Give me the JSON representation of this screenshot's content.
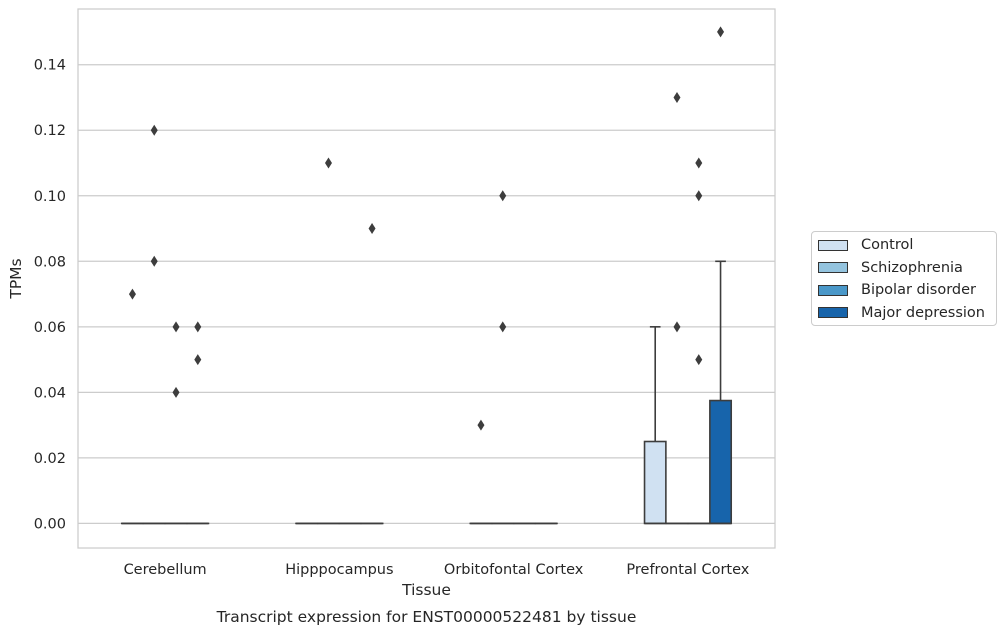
{
  "chart_data": {
    "type": "box",
    "caption": "Transcript expression for ENST00000522481 by tissue",
    "xlabel": "Tissue",
    "ylabel": "TPMs",
    "ylim": [
      -0.0075,
      0.157
    ],
    "yticks": [
      0.0,
      0.02,
      0.04,
      0.06,
      0.08,
      0.1,
      0.12,
      0.14
    ],
    "ytick_labels": [
      "0.00",
      "0.02",
      "0.04",
      "0.06",
      "0.08",
      "0.10",
      "0.12",
      "0.14"
    ],
    "grid": true,
    "legend_position": "right",
    "categories": [
      "Cerebellum",
      "Hipppocampus",
      "Orbitofontal Cortex",
      "Prefrontal Cortex"
    ],
    "series": [
      {
        "name": "Control",
        "color": "#d0e1f2",
        "boxes": [
          {
            "q1": 0,
            "median": 0,
            "q3": 0,
            "whisker_low": 0,
            "whisker_high": 0,
            "outliers": [
              0.07
            ]
          },
          {
            "q1": 0,
            "median": 0,
            "q3": 0,
            "whisker_low": 0,
            "whisker_high": 0,
            "outliers": []
          },
          {
            "q1": 0,
            "median": 0,
            "q3": 0,
            "whisker_low": 0,
            "whisker_high": 0,
            "outliers": [
              0.03
            ]
          },
          {
            "q1": 0,
            "median": 0,
            "q3": 0.025,
            "whisker_low": 0,
            "whisker_high": 0.06,
            "outliers": []
          }
        ]
      },
      {
        "name": "Schizophrenia",
        "color": "#94c4df",
        "boxes": [
          {
            "q1": 0,
            "median": 0,
            "q3": 0,
            "whisker_low": 0,
            "whisker_high": 0,
            "outliers": [
              0.12,
              0.08
            ]
          },
          {
            "q1": 0,
            "median": 0,
            "q3": 0,
            "whisker_low": 0,
            "whisker_high": 0,
            "outliers": [
              0.11
            ]
          },
          {
            "q1": 0,
            "median": 0,
            "q3": 0,
            "whisker_low": 0,
            "whisker_high": 0,
            "outliers": [
              0.1,
              0.06
            ]
          },
          {
            "q1": 0,
            "median": 0,
            "q3": 0,
            "whisker_low": 0,
            "whisker_high": 0,
            "outliers": [
              0.13,
              0.06
            ]
          }
        ]
      },
      {
        "name": "Bipolar disorder",
        "color": "#4a98c9",
        "boxes": [
          {
            "q1": 0,
            "median": 0,
            "q3": 0,
            "whisker_low": 0,
            "whisker_high": 0,
            "outliers": [
              0.06,
              0.04
            ]
          },
          {
            "q1": 0,
            "median": 0,
            "q3": 0,
            "whisker_low": 0,
            "whisker_high": 0,
            "outliers": []
          },
          {
            "q1": 0,
            "median": 0,
            "q3": 0,
            "whisker_low": 0,
            "whisker_high": 0,
            "outliers": []
          },
          {
            "q1": 0,
            "median": 0,
            "q3": 0,
            "whisker_low": 0,
            "whisker_high": 0,
            "outliers": [
              0.11,
              0.1,
              0.05
            ]
          }
        ]
      },
      {
        "name": "Major depression",
        "color": "#1764ab",
        "boxes": [
          {
            "q1": 0,
            "median": 0,
            "q3": 0,
            "whisker_low": 0,
            "whisker_high": 0,
            "outliers": [
              0.06,
              0.05
            ]
          },
          {
            "q1": 0,
            "median": 0,
            "q3": 0,
            "whisker_low": 0,
            "whisker_high": 0,
            "outliers": [
              0.09
            ]
          },
          {
            "q1": 0,
            "median": 0,
            "q3": 0,
            "whisker_low": 0,
            "whisker_high": 0,
            "outliers": []
          },
          {
            "q1": 0,
            "median": 0,
            "q3": 0.0375,
            "whisker_low": 0,
            "whisker_high": 0.08,
            "outliers": [
              0.15
            ]
          }
        ]
      }
    ]
  }
}
